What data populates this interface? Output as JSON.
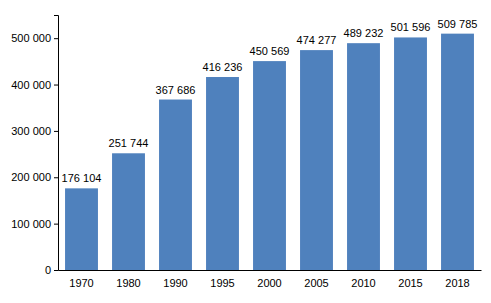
{
  "chart_data": {
    "type": "bar",
    "categories": [
      "1970",
      "1980",
      "1990",
      "1995",
      "2000",
      "2005",
      "2010",
      "2015",
      "2018"
    ],
    "values": [
      176104,
      251744,
      367686,
      416236,
      450569,
      474277,
      489232,
      501596,
      509785
    ],
    "value_labels": [
      "176 104",
      "251 744",
      "367 686",
      "416 236",
      "450 569",
      "474 277",
      "489 232",
      "501 596",
      "509 785"
    ],
    "data_labels": true,
    "color": "#4f81bd",
    "ylim": [
      0,
      550000
    ],
    "yticks": [
      0,
      {
        "value": 100000,
        "label": "100 000"
      },
      {
        "value": 200000,
        "label": "200 000"
      },
      {
        "value": 300000,
        "label": "300 000"
      },
      {
        "value": 400000,
        "label": "400 000"
      },
      {
        "value": 500000,
        "label": "500 000"
      }
    ],
    "grid": false
  }
}
